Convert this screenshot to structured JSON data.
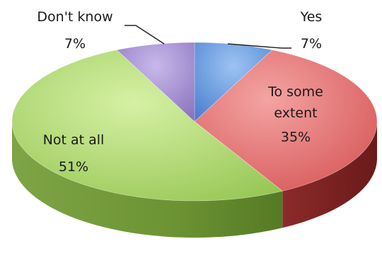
{
  "chart_data": {
    "type": "pie",
    "title": "",
    "style": "3d-exploded",
    "legend": "none",
    "slices": [
      {
        "label": "Yes",
        "value": 7,
        "display": "7%",
        "color": "#5b8fd8",
        "side_color": "#3f6aa8"
      },
      {
        "label": "To some extent",
        "value": 35,
        "display": "35%",
        "color": "#e06a6a",
        "side_color": "#8c2a2a",
        "label_lines": [
          "To some",
          "extent"
        ]
      },
      {
        "label": "Not at all",
        "value": 51,
        "display": "51%",
        "color": "#a8d36a",
        "side_color": "#6f9a34"
      },
      {
        "label": "Don't know",
        "value": 7,
        "display": "7%",
        "color": "#9b86c9",
        "side_color": "#6b5a96"
      }
    ]
  }
}
